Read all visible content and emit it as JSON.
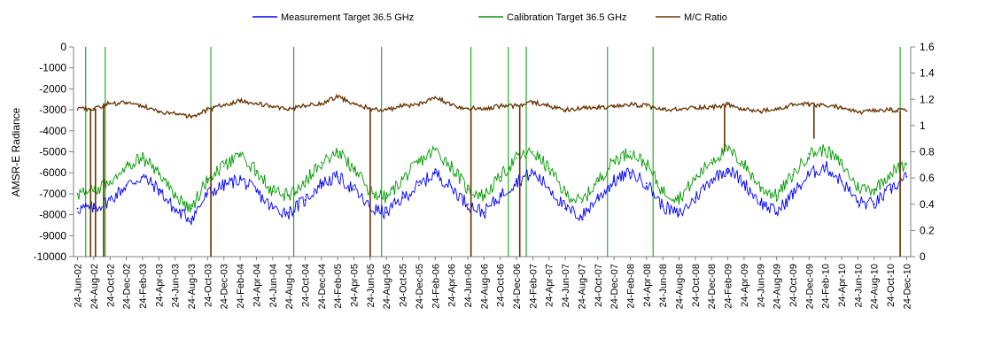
{
  "chart_data": {
    "type": "line",
    "ylabel": "AMSR-E Radiance",
    "y2label": "",
    "ylim": [
      -10000,
      0
    ],
    "y2lim": [
      0,
      1.6
    ],
    "yticks": [
      "0",
      "-1000",
      "-2000",
      "-3000",
      "-4000",
      "-5000",
      "-6000",
      "-7000",
      "-8000",
      "-9000",
      "-10000"
    ],
    "y2ticks": [
      "1.6",
      "1.4",
      "1.2",
      "1",
      "0.8",
      "0.6",
      "0.4",
      "0.2",
      "0"
    ],
    "xlim": [
      "2002-06-24",
      "2010-12-24"
    ],
    "grid": false,
    "legend_position": "top",
    "categories": [
      "24-Jun-02",
      "24-Aug-02",
      "24-Oct-02",
      "24-Dec-02",
      "24-Feb-03",
      "24-Apr-03",
      "24-Jun-03",
      "24-Aug-03",
      "24-Oct-03",
      "24-Dec-03",
      "24-Feb-04",
      "24-Apr-04",
      "24-Jun-04",
      "24-Aug-04",
      "24-Oct-04",
      "24-Dec-04",
      "24-Feb-05",
      "24-Apr-05",
      "24-Jun-05",
      "24-Aug-05",
      "24-Oct-05",
      "24-Dec-05",
      "24-Feb-06",
      "24-Apr-06",
      "24-Jun-06",
      "24-Aug-06",
      "24-Oct-06",
      "24-Dec-06",
      "24-Feb-07",
      "24-Apr-07",
      "24-Jun-07",
      "24-Aug-07",
      "24-Oct-07",
      "24-Dec-07",
      "24-Feb-08",
      "24-Apr-08",
      "24-Jun-08",
      "24-Aug-08",
      "24-Oct-08",
      "24-Dec-08",
      "24-Feb-09",
      "24-Apr-09",
      "24-Jun-09",
      "24-Aug-09",
      "24-Oct-09",
      "24-Dec-09",
      "24-Feb-10",
      "24-Apr-10",
      "24-Jun-10",
      "24-Aug-10",
      "24-Oct-10",
      "24-Dec-10"
    ],
    "series": [
      {
        "name": "Measurement Target 36.5 GHz",
        "axis": "left",
        "color": "#0000ff",
        "values": [
          -7700,
          -7700,
          -7300,
          -6600,
          -6200,
          -6800,
          -7800,
          -8200,
          -7000,
          -6600,
          -6300,
          -6900,
          -7700,
          -7900,
          -7300,
          -6500,
          -6200,
          -6800,
          -7700,
          -7900,
          -7200,
          -6600,
          -6000,
          -6700,
          -7500,
          -7900,
          -7100,
          -6400,
          -6000,
          -6700,
          -7700,
          -8100,
          -7200,
          -6400,
          -6000,
          -6500,
          -7600,
          -8000,
          -7200,
          -6300,
          -5800,
          -6500,
          -7400,
          -7900,
          -7000,
          -6100,
          -5700,
          -6400,
          -7400,
          -7500,
          -6800,
          -6200
        ]
      },
      {
        "name": "Calibration Target 36.5 GHz",
        "axis": "left",
        "color": "#009900",
        "values": [
          -7000,
          -6900,
          -6400,
          -5600,
          -5300,
          -6000,
          -7100,
          -7700,
          -6300,
          -5700,
          -5200,
          -5900,
          -6900,
          -7100,
          -6400,
          -5500,
          -5000,
          -5800,
          -6900,
          -7200,
          -6300,
          -5500,
          -4900,
          -5700,
          -6800,
          -7100,
          -6200,
          -5300,
          -5000,
          -5800,
          -7000,
          -7400,
          -6400,
          -5400,
          -5000,
          -5600,
          -6900,
          -7200,
          -6300,
          -5400,
          -4900,
          -5600,
          -6700,
          -7100,
          -6100,
          -5100,
          -4900,
          -5600,
          -6700,
          -6800,
          -6000,
          -5600
        ]
      },
      {
        "name": "M/C Ratio",
        "axis": "right",
        "color": "#663300",
        "values": [
          1.12,
          1.13,
          1.17,
          1.17,
          1.15,
          1.1,
          1.09,
          1.07,
          1.12,
          1.16,
          1.19,
          1.17,
          1.14,
          1.12,
          1.15,
          1.17,
          1.22,
          1.17,
          1.13,
          1.12,
          1.15,
          1.16,
          1.22,
          1.16,
          1.13,
          1.13,
          1.15,
          1.15,
          1.18,
          1.15,
          1.12,
          1.13,
          1.14,
          1.14,
          1.16,
          1.15,
          1.12,
          1.12,
          1.14,
          1.14,
          1.16,
          1.12,
          1.11,
          1.12,
          1.16,
          1.16,
          1.15,
          1.14,
          1.1,
          1.11,
          1.12,
          1.11
        ],
        "spikes": [
          [
            0.8,
            0
          ],
          [
            1.1,
            0
          ],
          [
            1.6,
            0
          ],
          [
            8.2,
            0
          ],
          [
            18.0,
            0
          ],
          [
            24.2,
            0
          ],
          [
            27.2,
            0
          ],
          [
            39.8,
            0.8
          ],
          [
            45.3,
            0.9
          ],
          [
            50.6,
            0
          ]
        ]
      }
    ],
    "vertical_markers": [
      0.5,
      1.7,
      8.2,
      13.3,
      18.7,
      24.2,
      26.5,
      27.6,
      32.6,
      35.4,
      50.6
    ]
  }
}
